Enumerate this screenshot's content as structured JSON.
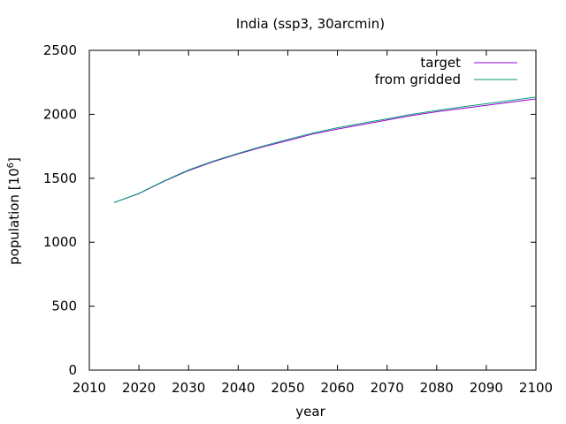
{
  "chart_data": {
    "type": "line",
    "title": "India (ssp3, 30arcmin)",
    "xlabel": "year",
    "ylabel_base": "population [10",
    "ylabel_exp": "6",
    "ylabel_close": "]",
    "xlim": [
      2010,
      2100
    ],
    "ylim": [
      0,
      2500
    ],
    "xticks": [
      2010,
      2020,
      2030,
      2040,
      2050,
      2060,
      2070,
      2080,
      2090,
      2100
    ],
    "yticks": [
      0,
      500,
      1000,
      1500,
      2000,
      2500
    ],
    "grid": false,
    "legend_position": "top-right",
    "series": [
      {
        "name": "target",
        "color": "#9400d3",
        "x": [
          2015,
          2020,
          2025,
          2030,
          2035,
          2040,
          2045,
          2050,
          2055,
          2060,
          2065,
          2070,
          2075,
          2080,
          2085,
          2090,
          2095,
          2100
        ],
        "values": [
          1310,
          1380,
          1475,
          1560,
          1630,
          1690,
          1745,
          1795,
          1845,
          1885,
          1920,
          1955,
          1990,
          2020,
          2045,
          2070,
          2095,
          2120
        ]
      },
      {
        "name": "from gridded",
        "color": "#009e73",
        "x": [
          2015,
          2020,
          2025,
          2030,
          2035,
          2040,
          2045,
          2050,
          2055,
          2060,
          2065,
          2070,
          2075,
          2080,
          2085,
          2090,
          2095,
          2100
        ],
        "values": [
          1310,
          1382,
          1478,
          1565,
          1635,
          1695,
          1752,
          1803,
          1853,
          1895,
          1930,
          1965,
          2000,
          2030,
          2057,
          2083,
          2108,
          2135
        ]
      }
    ]
  }
}
